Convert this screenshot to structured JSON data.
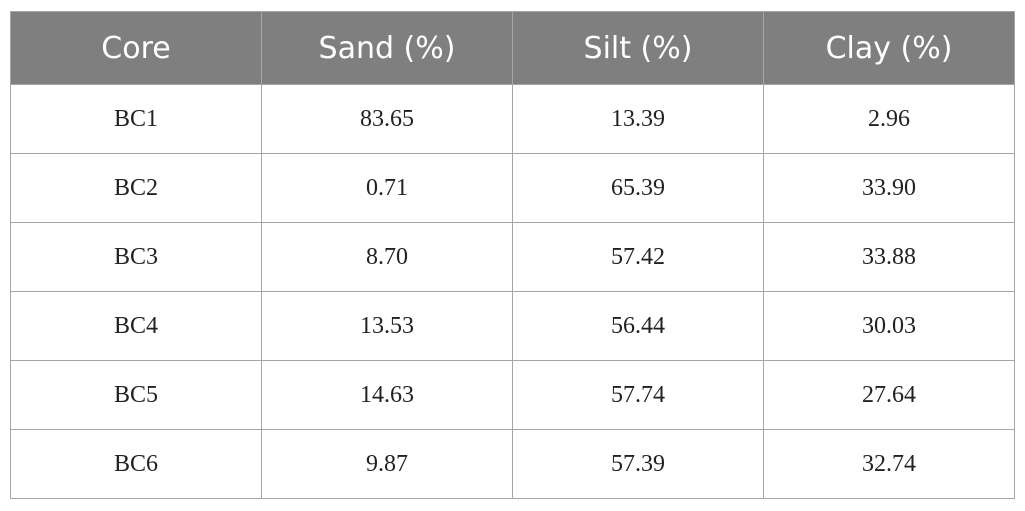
{
  "table": {
    "header": [
      "Core",
      "Sand (%)",
      "Silt (%)",
      "Clay (%)"
    ],
    "rows": [
      [
        "BC1",
        "83.65",
        "13.39",
        "2.96"
      ],
      [
        "BC2",
        "0.71",
        "65.39",
        "33.90"
      ],
      [
        "BC3",
        "8.70",
        "57.42",
        "33.88"
      ],
      [
        "BC4",
        "13.53",
        "56.44",
        "30.03"
      ],
      [
        "BC5",
        "14.63",
        "57.74",
        "27.64"
      ],
      [
        "BC6",
        "9.87",
        "57.39",
        "32.74"
      ]
    ]
  }
}
